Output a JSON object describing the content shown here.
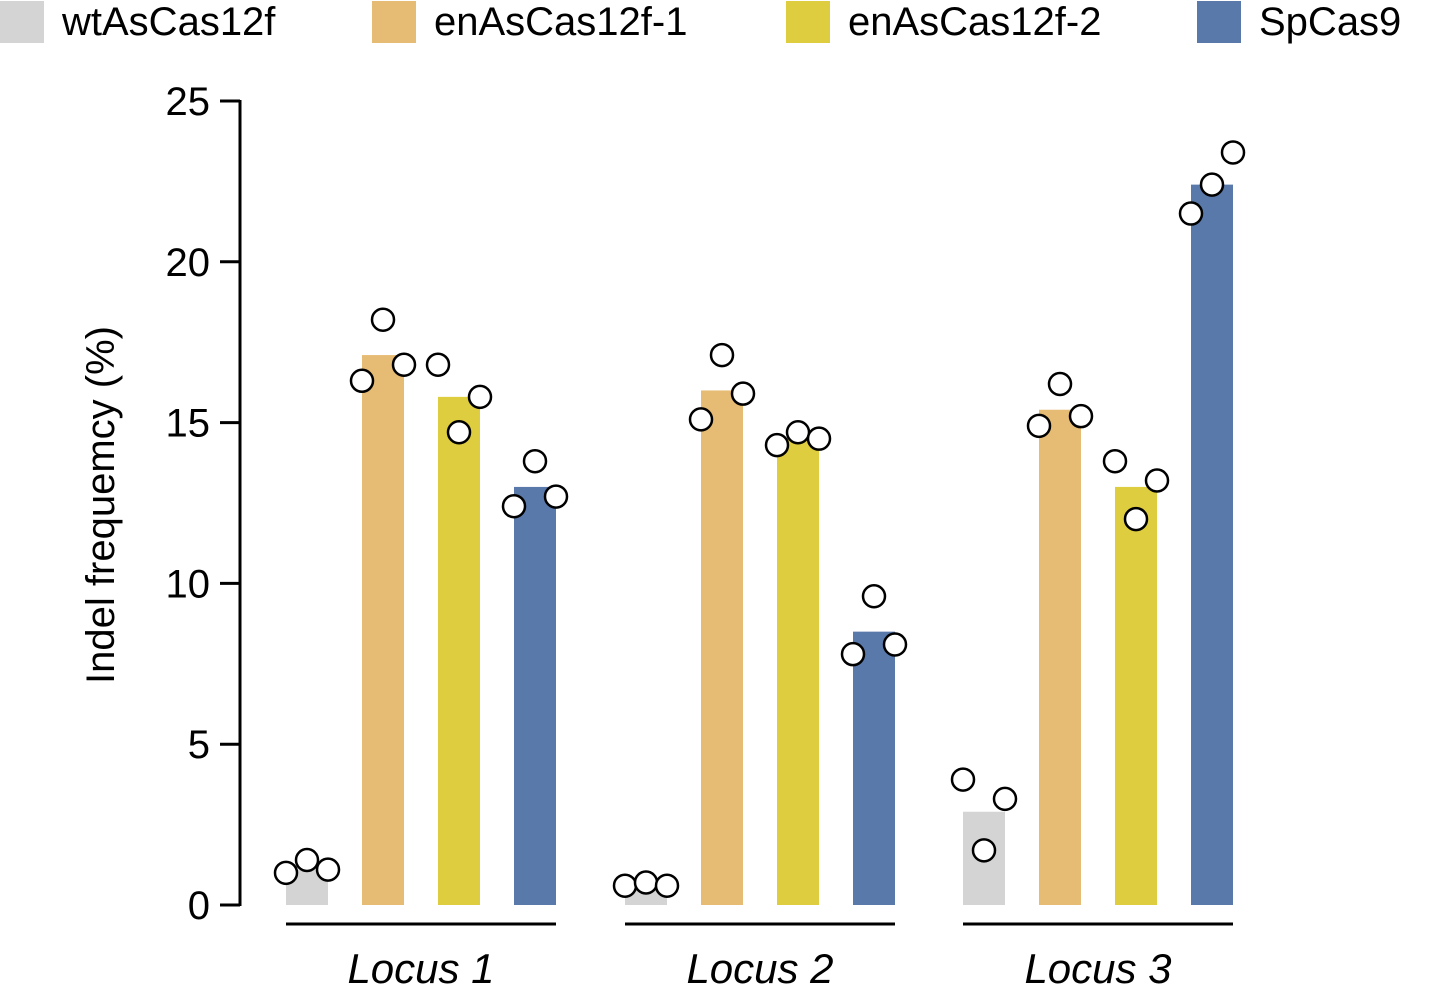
{
  "chart_data": {
    "type": "bar",
    "title": "",
    "ylabel": "Indel frequemcy  (%)",
    "xlabel": "",
    "ylim": [
      0,
      25
    ],
    "yticks": [
      "0",
      "5",
      "10",
      "15",
      "20",
      "25"
    ],
    "categories": [
      "Locus 1",
      "Locus 2",
      "Locus 3"
    ],
    "legend_position": "top",
    "grid": false,
    "series": [
      {
        "name": "wtAsCas12f",
        "color": "#d3d4d3",
        "values": [
          1.1,
          0.6,
          2.9
        ],
        "points": [
          [
            1.0,
            1.4,
            1.1
          ],
          [
            0.6,
            0.7,
            0.6
          ],
          [
            3.9,
            1.7,
            3.3
          ]
        ]
      },
      {
        "name": "enAsCas12f-1",
        "color": "#e6bb74",
        "values": [
          17.1,
          16.0,
          15.4
        ],
        "points": [
          [
            16.3,
            18.2,
            16.8
          ],
          [
            15.1,
            17.1,
            15.9
          ],
          [
            14.9,
            16.2,
            15.2
          ]
        ]
      },
      {
        "name": "enAsCas12f-2",
        "color": "#decd3f",
        "values": [
          15.8,
          14.5,
          13.0
        ],
        "points": [
          [
            16.8,
            14.7,
            15.8
          ],
          [
            14.3,
            14.7,
            14.5
          ],
          [
            13.8,
            12.0,
            13.2
          ]
        ]
      },
      {
        "name": "SpCas9",
        "color": "#5a79ab",
        "values": [
          13.0,
          8.5,
          22.4
        ],
        "points": [
          [
            12.4,
            13.8,
            12.7
          ],
          [
            7.8,
            9.6,
            8.1
          ],
          [
            21.5,
            22.4,
            23.4
          ]
        ]
      }
    ]
  }
}
